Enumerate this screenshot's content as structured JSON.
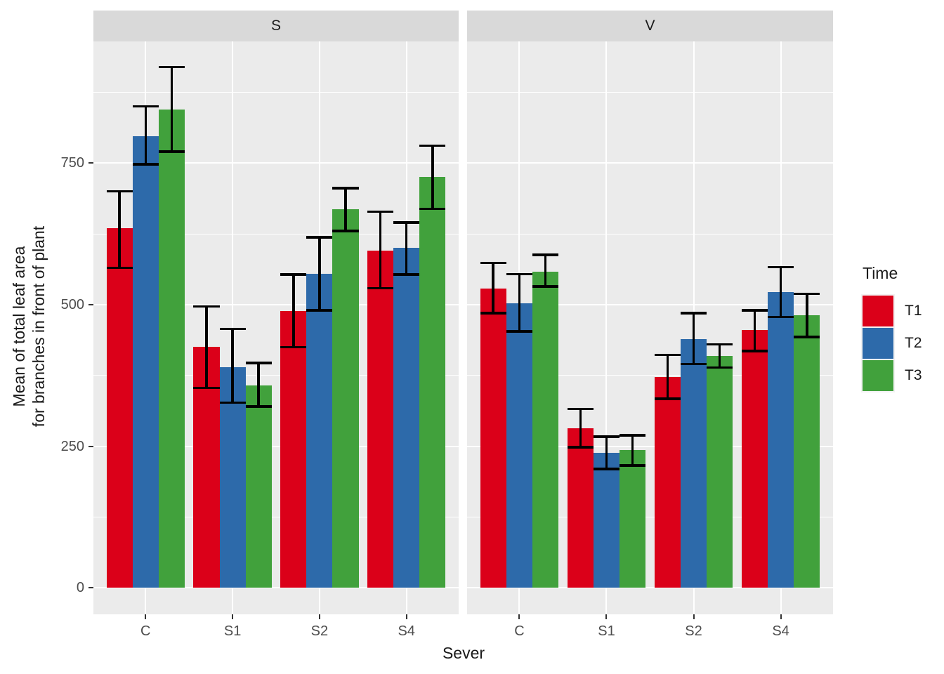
{
  "chart_data": {
    "type": "bar",
    "title": "",
    "xlabel": "Sever",
    "ylabel_line1": "Mean of total leaf area",
    "ylabel_line2": "for branches in front of plant",
    "categories": [
      "C",
      "S1",
      "S2",
      "S4"
    ],
    "y_axis": {
      "ticks": [
        0,
        250,
        500,
        750
      ],
      "minor_gridlines": [
        125,
        375,
        625,
        875
      ],
      "ylim": [
        -47,
        965
      ]
    },
    "legend": {
      "title": "Time",
      "entries": [
        {
          "label": "T1",
          "color": "#DB0019"
        },
        {
          "label": "T2",
          "color": "#2D6AAA"
        },
        {
          "label": "T3",
          "color": "#41A13C"
        }
      ]
    },
    "facets": [
      {
        "label": "S",
        "series": [
          {
            "name": "T1",
            "color": "#DB0019",
            "values": [
              635,
              425,
              489,
              596
            ],
            "err_lo": [
              565,
              353,
              425,
              529
            ],
            "err_hi": [
              700,
              497,
              553,
              664
            ]
          },
          {
            "name": "T2",
            "color": "#2D6AAA",
            "values": [
              797,
              390,
              554,
              600
            ],
            "err_lo": [
              748,
              327,
              490,
              553
            ],
            "err_hi": [
              850,
              457,
              619,
              645
            ]
          },
          {
            "name": "T3",
            "color": "#41A13C",
            "values": [
              845,
              357,
              668,
              726
            ],
            "err_lo": [
              770,
              320,
              630,
              669
            ],
            "err_hi": [
              920,
              397,
              706,
              781
            ]
          }
        ]
      },
      {
        "label": "V",
        "series": [
          {
            "name": "T1",
            "color": "#DB0019",
            "values": [
              529,
              282,
              372,
              455
            ],
            "err_lo": [
              485,
              248,
              334,
              418
            ],
            "err_hi": [
              574,
              316,
              411,
              490
            ]
          },
          {
            "name": "T2",
            "color": "#2D6AAA",
            "values": [
              503,
              238,
              439,
              522
            ],
            "err_lo": [
              453,
              210,
              395,
              478
            ],
            "err_hi": [
              554,
              267,
              485,
              566
            ]
          },
          {
            "name": "T3",
            "color": "#41A13C",
            "values": [
              558,
              243,
              409,
              481
            ],
            "err_lo": [
              532,
              216,
              389,
              443
            ],
            "err_hi": [
              588,
              269,
              430,
              519
            ]
          }
        ]
      }
    ]
  }
}
